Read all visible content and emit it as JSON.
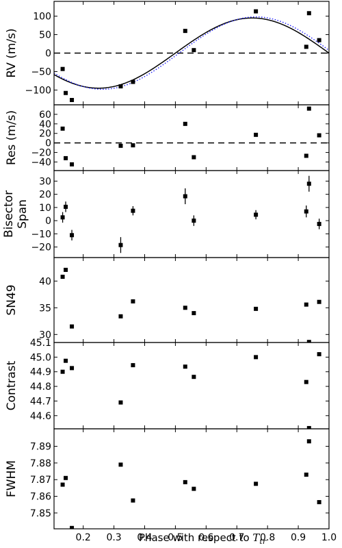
{
  "chart_data": {
    "type": "scatter",
    "shared_x": {
      "label_prefix": "Phase with respect to ",
      "label_symbol": "T",
      "label_subscript": "tr",
      "xlim": [
        0.105,
        1.0
      ],
      "ticks": [
        0.2,
        0.3,
        0.4,
        0.5,
        0.6,
        0.7,
        0.8,
        0.9,
        1.0
      ],
      "tick_labels": [
        "0.2",
        "0.3",
        "0.4",
        "0.5",
        "0.6",
        "0.7",
        "0.8",
        "0.9",
        "1.0"
      ]
    },
    "panels": [
      {
        "ylabel": [
          "RV (m/s)"
        ],
        "ylim": [
          -140,
          140
        ],
        "yticks": [
          -100,
          -50,
          0,
          50,
          100
        ],
        "ytick_labels": [
          "−100",
          "−50",
          "0",
          "50",
          "100"
        ],
        "zero_line": true,
        "points": [
          {
            "x": 0.133,
            "y": -43
          },
          {
            "x": 0.143,
            "y": -108
          },
          {
            "x": 0.163,
            "y": -127
          },
          {
            "x": 0.322,
            "y": -90
          },
          {
            "x": 0.362,
            "y": -78
          },
          {
            "x": 0.532,
            "y": 60
          },
          {
            "x": 0.56,
            "y": 8
          },
          {
            "x": 0.762,
            "y": 113
          },
          {
            "x": 0.926,
            "y": 17
          },
          {
            "x": 0.935,
            "y": 108
          },
          {
            "x": 0.968,
            "y": 35
          }
        ],
        "models": [
          {
            "style": "solid",
            "color": "#000000",
            "amplitude": 95,
            "phase_shift": 0.0
          },
          {
            "style": "dotted",
            "color": "#1a1aff",
            "amplitude": 98,
            "phase_shift": 0.012
          }
        ]
      },
      {
        "ylabel": [
          "Res (m/s)"
        ],
        "ylim": [
          -58,
          80
        ],
        "yticks": [
          -40,
          -20,
          0,
          20,
          40,
          60
        ],
        "ytick_labels": [
          "−40",
          "−20",
          "0",
          "20",
          "40",
          "60"
        ],
        "zero_line": true,
        "points": [
          {
            "x": 0.133,
            "y": 30
          },
          {
            "x": 0.143,
            "y": -32
          },
          {
            "x": 0.163,
            "y": -45
          },
          {
            "x": 0.322,
            "y": -6
          },
          {
            "x": 0.362,
            "y": -5
          },
          {
            "x": 0.532,
            "y": 40
          },
          {
            "x": 0.56,
            "y": -30
          },
          {
            "x": 0.762,
            "y": 17
          },
          {
            "x": 0.926,
            "y": -27
          },
          {
            "x": 0.935,
            "y": 72
          },
          {
            "x": 0.968,
            "y": 16
          }
        ]
      },
      {
        "ylabel": [
          "Bisector",
          "Span"
        ],
        "ylim": [
          -28,
          38
        ],
        "yticks": [
          -20,
          -10,
          0,
          10,
          20,
          30
        ],
        "ytick_labels": [
          "−20",
          "−10",
          "0",
          "10",
          "20",
          "30"
        ],
        "zero_line": false,
        "points": [
          {
            "x": 0.133,
            "y": 2.5,
            "err": 4
          },
          {
            "x": 0.143,
            "y": 10.5,
            "err": 4
          },
          {
            "x": 0.163,
            "y": -11,
            "err": 4
          },
          {
            "x": 0.322,
            "y": -18.5,
            "err": 6
          },
          {
            "x": 0.362,
            "y": 7.5,
            "err": 3.5
          },
          {
            "x": 0.532,
            "y": 18.5,
            "err": 6
          },
          {
            "x": 0.56,
            "y": 0,
            "err": 4
          },
          {
            "x": 0.762,
            "y": 4.5,
            "err": 3.5
          },
          {
            "x": 0.926,
            "y": 7,
            "err": 4.5
          },
          {
            "x": 0.935,
            "y": 28,
            "err": 6
          },
          {
            "x": 0.968,
            "y": -2.5,
            "err": 4
          }
        ]
      },
      {
        "ylabel": [
          "SN49"
        ],
        "ylim": [
          28.5,
          44.4
        ],
        "yticks": [
          30,
          35,
          40
        ],
        "ytick_labels": [
          "30",
          "35",
          "40"
        ],
        "zero_line": false,
        "points": [
          {
            "x": 0.133,
            "y": 40.8
          },
          {
            "x": 0.143,
            "y": 42.1
          },
          {
            "x": 0.163,
            "y": 31.5
          },
          {
            "x": 0.322,
            "y": 33.4
          },
          {
            "x": 0.362,
            "y": 36.2
          },
          {
            "x": 0.532,
            "y": 35.0
          },
          {
            "x": 0.56,
            "y": 34.0
          },
          {
            "x": 0.762,
            "y": 34.8
          },
          {
            "x": 0.926,
            "y": 35.6
          },
          {
            "x": 0.935,
            "y": 28.6
          },
          {
            "x": 0.968,
            "y": 36.1
          }
        ]
      },
      {
        "ylabel": [
          "Contrast"
        ],
        "ylim": [
          44.51,
          45.1
        ],
        "yticks": [
          44.6,
          44.7,
          44.8,
          44.9,
          45.0,
          45.1
        ],
        "ytick_labels": [
          "44.6",
          "44.7",
          "44.8",
          "44.9",
          "45.0",
          "45.1"
        ],
        "zero_line": false,
        "points": [
          {
            "x": 0.133,
            "y": 44.9
          },
          {
            "x": 0.143,
            "y": 44.975
          },
          {
            "x": 0.163,
            "y": 44.925
          },
          {
            "x": 0.322,
            "y": 44.69
          },
          {
            "x": 0.362,
            "y": 44.945
          },
          {
            "x": 0.532,
            "y": 44.935
          },
          {
            "x": 0.56,
            "y": 44.865
          },
          {
            "x": 0.762,
            "y": 45.0
          },
          {
            "x": 0.926,
            "y": 44.83
          },
          {
            "x": 0.935,
            "y": 44.515
          },
          {
            "x": 0.968,
            "y": 45.02
          }
        ]
      },
      {
        "ylabel": [
          "FWHM"
        ],
        "ylim": [
          7.8405,
          7.9005
        ],
        "yticks": [
          7.85,
          7.86,
          7.87,
          7.88,
          7.89
        ],
        "ytick_labels": [
          "7.85",
          "7.86",
          "7.87",
          "7.88",
          "7.89"
        ],
        "zero_line": false,
        "points": [
          {
            "x": 0.133,
            "y": 7.867
          },
          {
            "x": 0.143,
            "y": 7.871
          },
          {
            "x": 0.163,
            "y": 7.841
          },
          {
            "x": 0.322,
            "y": 7.879
          },
          {
            "x": 0.362,
            "y": 7.8575
          },
          {
            "x": 0.532,
            "y": 7.8685
          },
          {
            "x": 0.56,
            "y": 7.8645
          },
          {
            "x": 0.762,
            "y": 7.8675
          },
          {
            "x": 0.926,
            "y": 7.873
          },
          {
            "x": 0.935,
            "y": 7.893
          },
          {
            "x": 0.968,
            "y": 7.8565
          }
        ]
      }
    ]
  }
}
